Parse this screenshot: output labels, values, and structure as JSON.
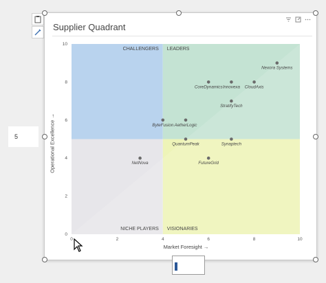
{
  "visual": {
    "title": "Supplier Quadrant",
    "side_value": "5"
  },
  "colors": {
    "challengers": "#b9d3ee",
    "leaders": "#c4e3d3",
    "niche": "#e7e6ea",
    "visionaries": "#eef4b8",
    "point": "#6b6b6b"
  },
  "chart_data": {
    "type": "scatter",
    "title": "Supplier Quadrant",
    "xlabel": "Market Foresight →",
    "ylabel": "Operational Excellence →",
    "xlim": [
      0,
      10
    ],
    "ylim": [
      0,
      10
    ],
    "xticks": [
      "0",
      "2",
      "4",
      "6",
      "8",
      "10"
    ],
    "yticks": [
      "0",
      "2",
      "4",
      "6",
      "8",
      "10"
    ],
    "quadrant_split": {
      "x": 4,
      "y": 5
    },
    "quadrant_labels": [
      "CHALLENGERS",
      "LEADERS",
      "NICHE PLAYERS",
      "VISIONARIES"
    ],
    "points": [
      {
        "label": "Nexora Systems",
        "x": 9.0,
        "y": 9.0
      },
      {
        "label": "CoreDynamics",
        "x": 6.0,
        "y": 8.0
      },
      {
        "label": "Innovexa",
        "x": 7.0,
        "y": 8.0
      },
      {
        "label": "CloudAxis",
        "x": 8.0,
        "y": 8.0
      },
      {
        "label": "StratifyTech",
        "x": 7.0,
        "y": 7.0
      },
      {
        "label": "ByteFusion",
        "x": 4.0,
        "y": 6.0
      },
      {
        "label": "AetherLogic",
        "x": 5.0,
        "y": 6.0
      },
      {
        "label": "QuantumPeak",
        "x": 5.0,
        "y": 5.0
      },
      {
        "label": "Synaptech",
        "x": 7.0,
        "y": 5.0
      },
      {
        "label": "NetNova",
        "x": 3.0,
        "y": 4.0
      },
      {
        "label": "FutureGrid",
        "x": 6.0,
        "y": 4.0
      }
    ]
  }
}
